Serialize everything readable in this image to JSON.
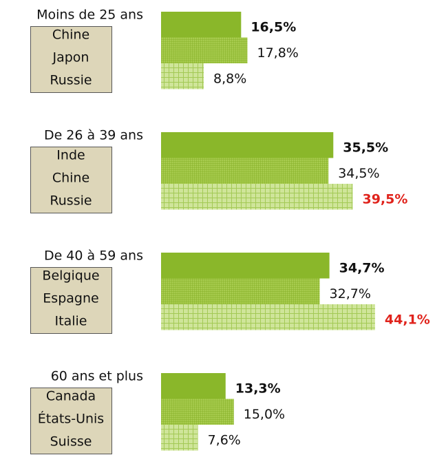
{
  "chart_data": {
    "type": "bar",
    "colors": [
      "#8ab72a",
      "#9cc43c",
      "#c6df8a"
    ],
    "groups": [
      {
        "label": "Moins de 25 ans",
        "countries": [
          "Chine",
          "Japon",
          "Russie"
        ],
        "values": [
          16.5,
          17.8,
          8.8
        ],
        "value_labels": [
          "16,5%",
          "17,8%",
          "8,8%"
        ]
      },
      {
        "label": "De 26 à 39 ans",
        "countries": [
          "Inde",
          "Chine",
          "Russie"
        ],
        "values": [
          35.5,
          34.5,
          39.5
        ],
        "value_labels": [
          "35,5%",
          "34,5%",
          "39,5%"
        ]
      },
      {
        "label": "De 40 à 59 ans",
        "countries": [
          "Belgique",
          "Espagne",
          "Italie"
        ],
        "values": [
          34.7,
          32.7,
          44.1
        ],
        "value_labels": [
          "34,7%",
          "32,7%",
          "44,1%"
        ]
      },
      {
        "label": "60 ans et plus",
        "countries": [
          "Canada",
          "États-Unis",
          "Suisse"
        ],
        "values": [
          13.3,
          15.0,
          7.6
        ],
        "value_labels": [
          "13,3%",
          "15,0%",
          "7,6%"
        ]
      }
    ]
  }
}
